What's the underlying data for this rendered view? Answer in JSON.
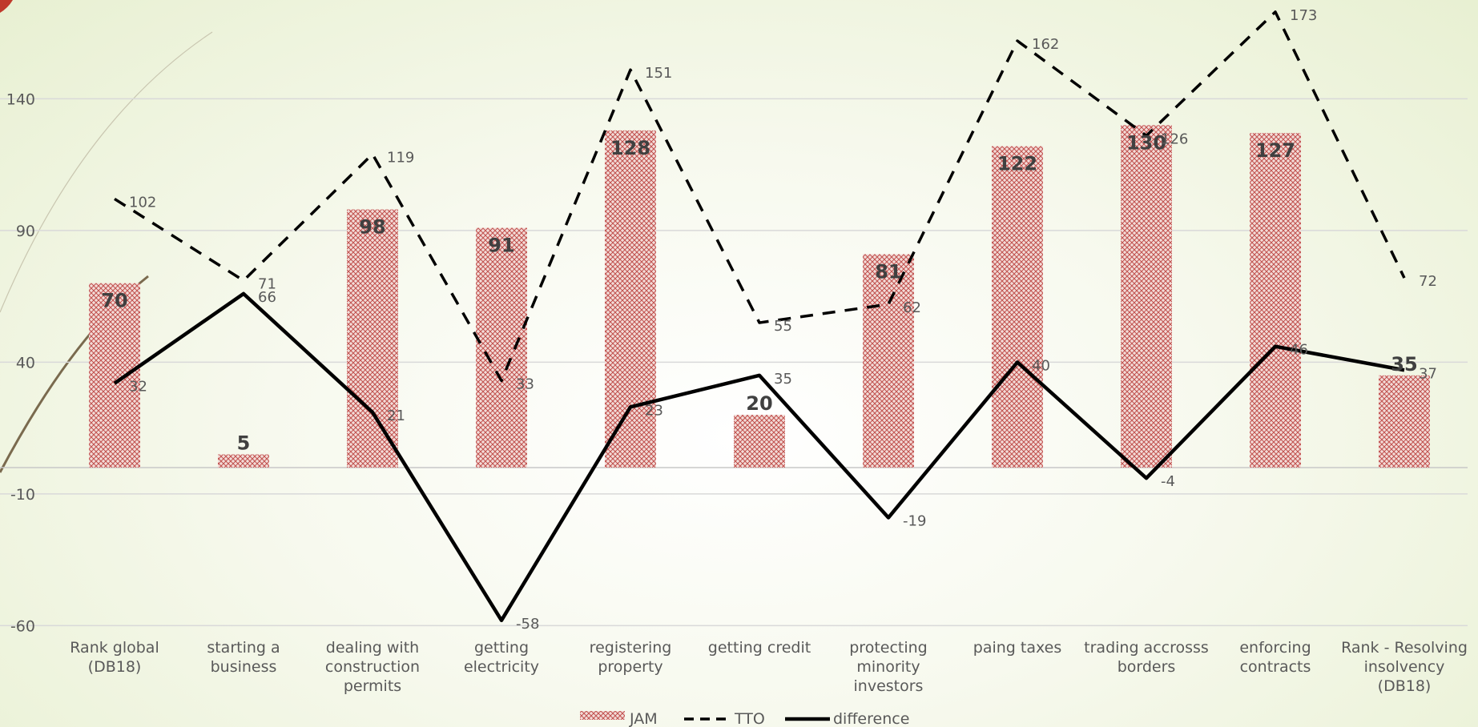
{
  "chart_data": {
    "type": "bar",
    "categories": [
      [
        "Rank global",
        "(DB18)"
      ],
      [
        "starting a",
        "business"
      ],
      [
        "dealing with",
        "construction",
        "permits"
      ],
      [
        "getting",
        "electricity"
      ],
      [
        "registering",
        "property"
      ],
      [
        "getting credit"
      ],
      [
        "protecting",
        "minority",
        "investors"
      ],
      [
        "paing taxes"
      ],
      [
        "trading accrosss",
        "borders"
      ],
      [
        "enforcing",
        "contracts"
      ],
      [
        "Rank - Resolving",
        "insolvency",
        "(DB18)"
      ]
    ],
    "series": [
      {
        "name": "JAM",
        "type": "bar",
        "values": [
          70,
          5,
          98,
          91,
          128,
          20,
          81,
          122,
          130,
          127,
          35
        ],
        "color": "#c0504d"
      },
      {
        "name": "TTO",
        "type": "line",
        "style": "dashed",
        "values": [
          102,
          71,
          119,
          33,
          151,
          55,
          62,
          162,
          126,
          173,
          72
        ],
        "color": "#000000"
      },
      {
        "name": "difference",
        "type": "line",
        "style": "solid",
        "values": [
          32,
          66,
          21,
          -58,
          23,
          35,
          -19,
          40,
          -4,
          46,
          37
        ],
        "color": "#000000"
      }
    ],
    "yticks": [
      -60,
      -10,
      40,
      90,
      140
    ],
    "ylim": [
      -60,
      173
    ],
    "grid": true,
    "legend": "bottom"
  }
}
